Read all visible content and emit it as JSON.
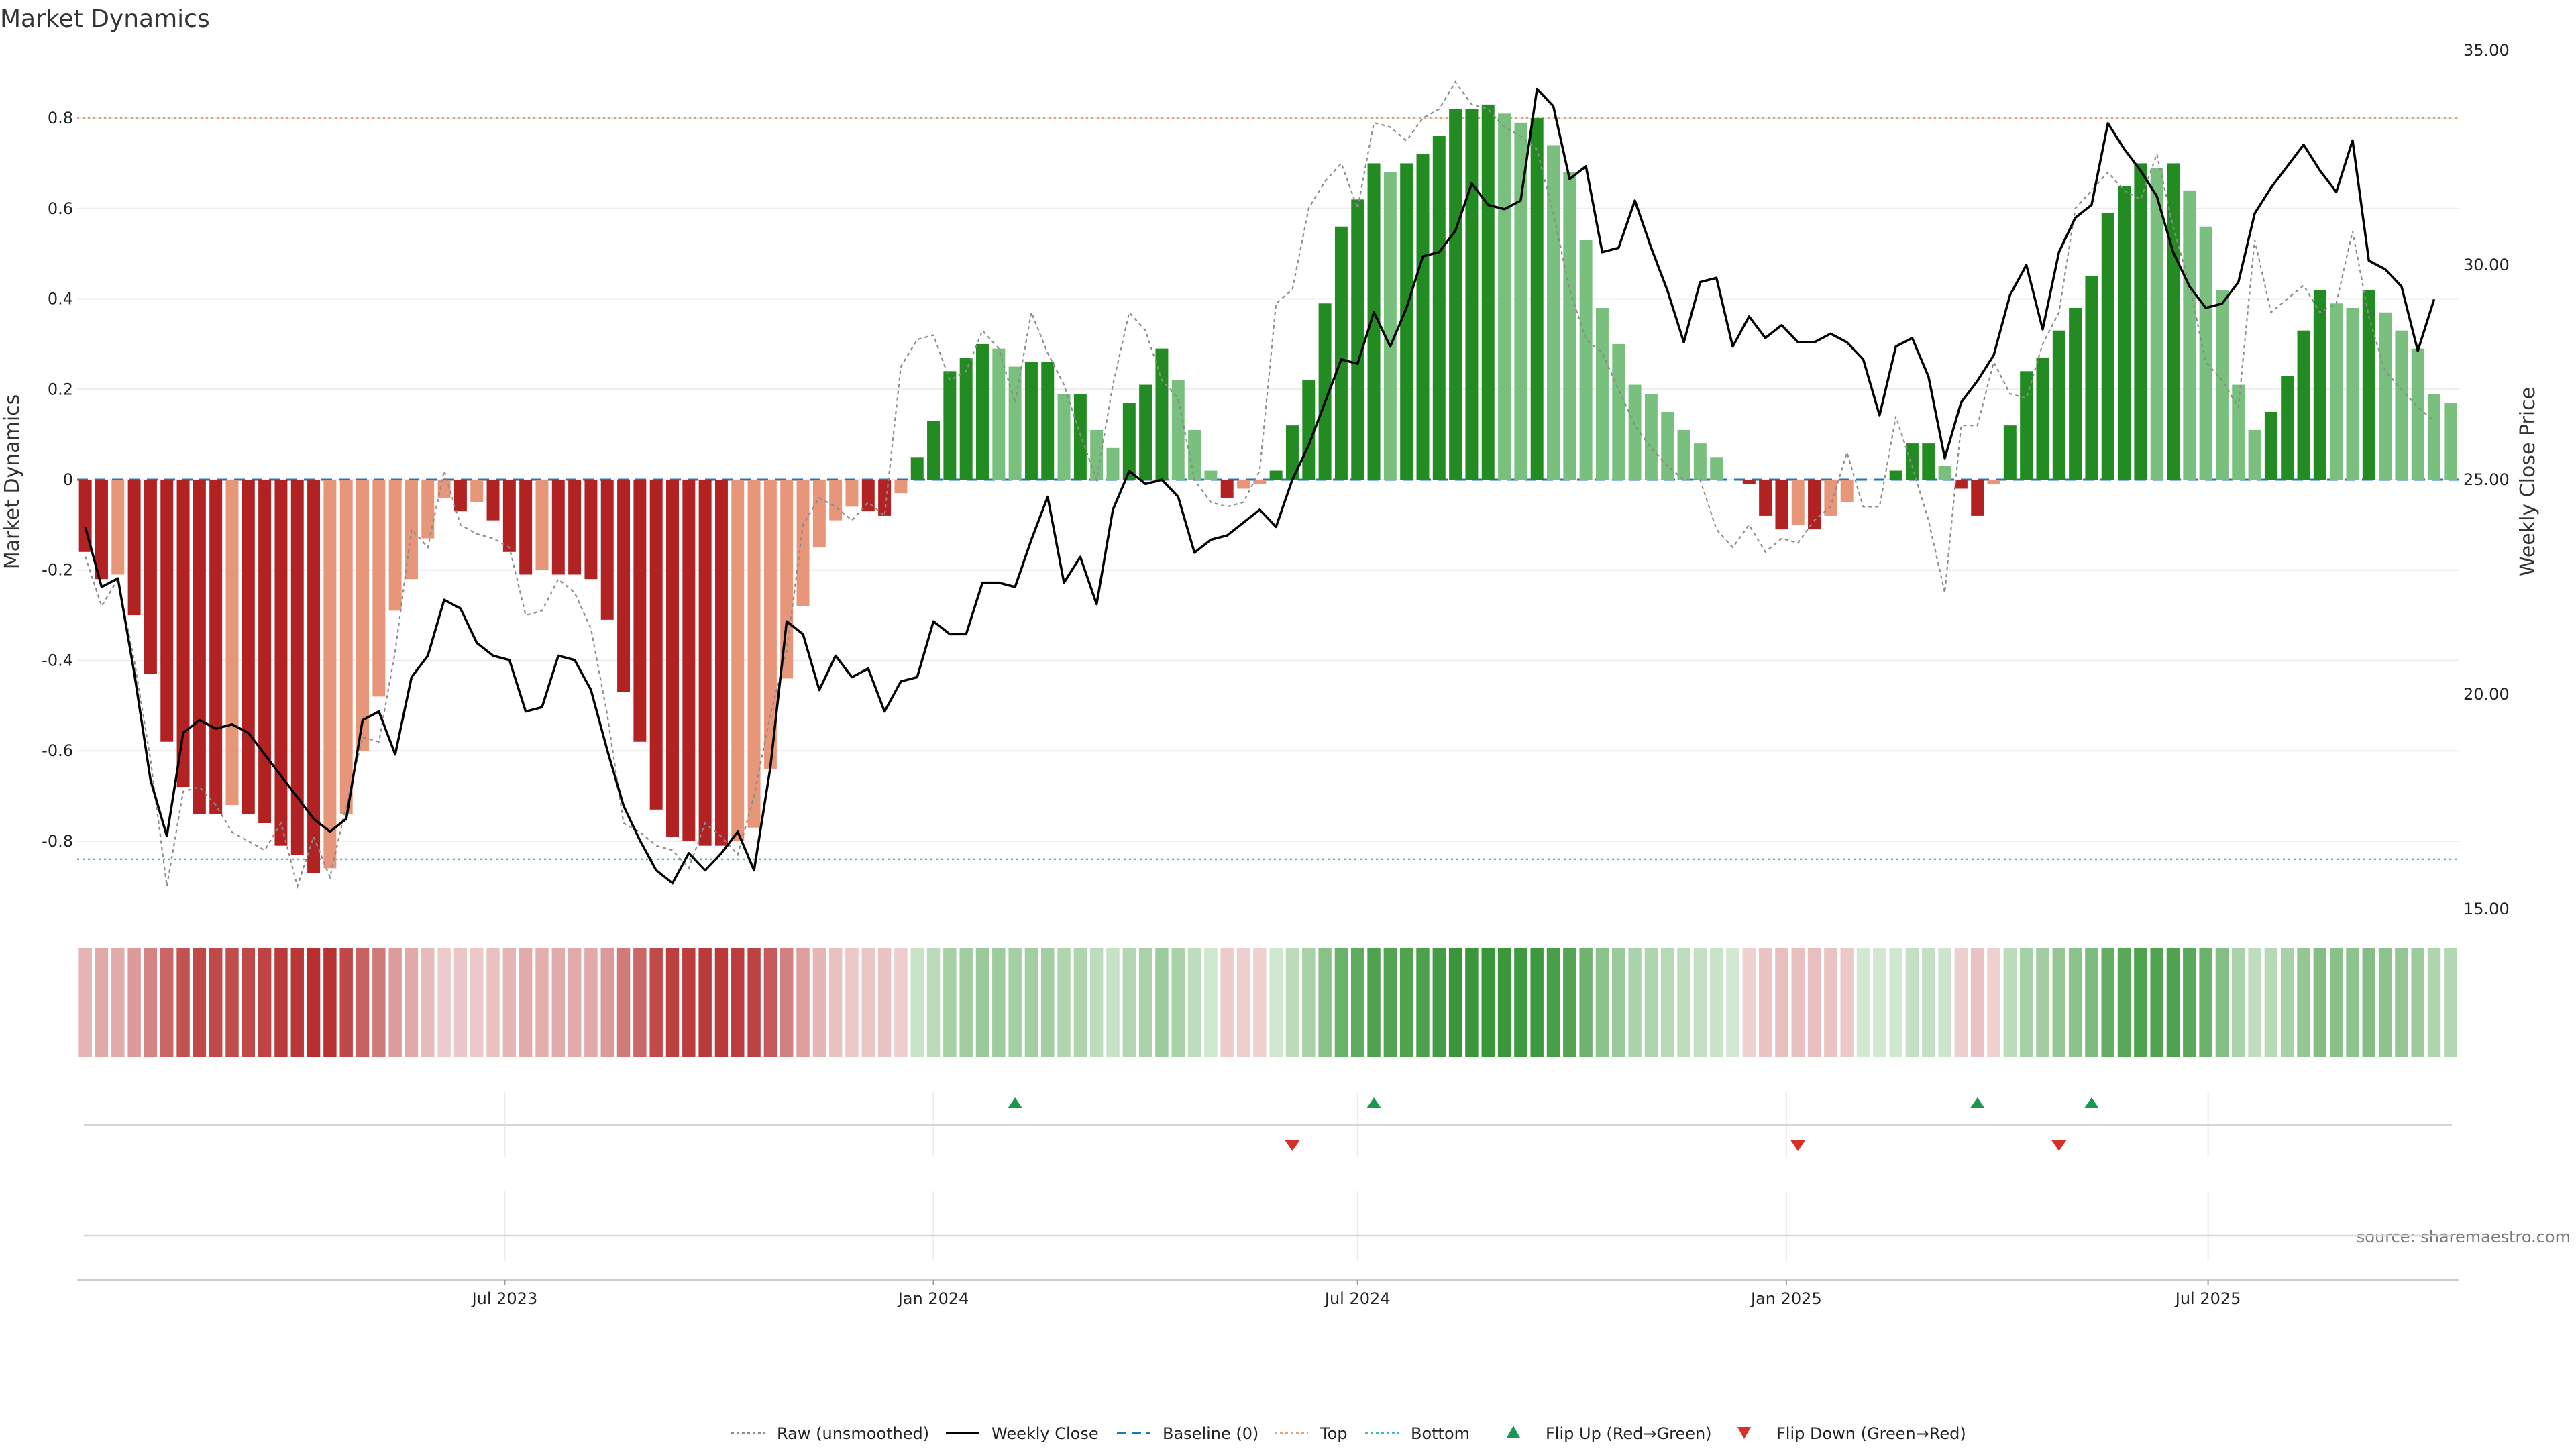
{
  "chart_data": {
    "type": "bar",
    "title": "Market Dynamics",
    "ylabel_left": "Market Dynamics",
    "ylabel_right": "Weekly Close Price",
    "source": "source: sharemaestro.com",
    "left_ylim": [
      -0.95,
      0.95
    ],
    "right_ylim": [
      15,
      35
    ],
    "left_ticks": [
      -0.8,
      -0.6,
      -0.4,
      -0.2,
      0,
      0.2,
      0.4,
      0.6,
      0.8
    ],
    "left_tick_labels": [
      "-0.8",
      "-0.6",
      "-0.4",
      "-0.2",
      "0",
      "0.2",
      "0.4",
      "0.6",
      "0.8"
    ],
    "right_ticks": [
      15,
      20,
      25,
      30,
      35
    ],
    "right_tick_labels": [
      "15.00",
      "20.00",
      "25.00",
      "30.00",
      "35.00"
    ],
    "top_level": 0.8,
    "bottom_level": -0.84,
    "baseline": 0,
    "start_date": "2023-01-02",
    "x_ticks": [
      "2023-07-01",
      "2024-01-01",
      "2024-07-01",
      "2025-01-01",
      "2025-07-01"
    ],
    "x_tick_labels": [
      "Jul 2023",
      "Jan 2024",
      "Jul 2024",
      "Jan 2025",
      "Jul 2025"
    ],
    "values": [
      -0.16,
      -0.22,
      -0.21,
      -0.3,
      -0.43,
      -0.58,
      -0.68,
      -0.74,
      -0.74,
      -0.72,
      -0.74,
      -0.76,
      -0.81,
      -0.83,
      -0.87,
      -0.86,
      -0.74,
      -0.6,
      -0.48,
      -0.29,
      -0.22,
      -0.13,
      -0.04,
      -0.07,
      -0.05,
      -0.09,
      -0.16,
      -0.21,
      -0.2,
      -0.21,
      -0.21,
      -0.22,
      -0.31,
      -0.47,
      -0.58,
      -0.73,
      -0.79,
      -0.8,
      -0.81,
      -0.81,
      -0.8,
      -0.77,
      -0.64,
      -0.44,
      -0.28,
      -0.15,
      -0.09,
      -0.06,
      -0.07,
      -0.08,
      -0.03,
      0.05,
      0.13,
      0.24,
      0.27,
      0.3,
      0.29,
      0.25,
      0.26,
      0.26,
      0.19,
      0.19,
      0.11,
      0.07,
      0.17,
      0.21,
      0.29,
      0.22,
      0.11,
      0.02,
      -0.04,
      -0.02,
      -0.01,
      0.02,
      0.12,
      0.22,
      0.39,
      0.56,
      0.62,
      0.7,
      0.68,
      0.7,
      0.72,
      0.76,
      0.82,
      0.82,
      0.83,
      0.81,
      0.79,
      0.8,
      0.74,
      0.68,
      0.53,
      0.38,
      0.3,
      0.21,
      0.19,
      0.15,
      0.11,
      0.08,
      0.05,
      0.0,
      -0.01,
      -0.08,
      -0.11,
      -0.1,
      -0.11,
      -0.08,
      -0.05,
      0.0,
      0.0,
      0.02,
      0.08,
      0.08,
      0.03,
      -0.02,
      -0.08,
      -0.01,
      0.12,
      0.24,
      0.27,
      0.33,
      0.38,
      0.45,
      0.59,
      0.65,
      0.7,
      0.69,
      0.7,
      0.64,
      0.56,
      0.42,
      0.21,
      0.11,
      0.15,
      0.23,
      0.33,
      0.42,
      0.39,
      0.38,
      0.42,
      0.37,
      0.33,
      0.29,
      0.19,
      0.17
    ],
    "raw_values": [
      -0.17,
      -0.28,
      -0.22,
      -0.4,
      -0.62,
      -0.9,
      -0.69,
      -0.68,
      -0.72,
      -0.78,
      -0.8,
      -0.82,
      -0.76,
      -0.9,
      -0.79,
      -0.88,
      -0.72,
      -0.57,
      -0.58,
      -0.38,
      -0.11,
      -0.15,
      0.02,
      -0.1,
      -0.12,
      -0.13,
      -0.15,
      -0.3,
      -0.29,
      -0.22,
      -0.25,
      -0.33,
      -0.52,
      -0.76,
      -0.78,
      -0.81,
      -0.82,
      -0.86,
      -0.76,
      -0.79,
      -0.83,
      -0.7,
      -0.52,
      -0.38,
      -0.1,
      -0.04,
      -0.06,
      -0.09,
      -0.05,
      -0.08,
      0.25,
      0.31,
      0.32,
      0.22,
      0.24,
      0.33,
      0.29,
      0.17,
      0.37,
      0.28,
      0.21,
      0.1,
      0.0,
      0.21,
      0.37,
      0.33,
      0.22,
      0.18,
      0.0,
      -0.05,
      -0.06,
      -0.05,
      0.02,
      0.39,
      0.42,
      0.6,
      0.66,
      0.7,
      0.6,
      0.79,
      0.78,
      0.75,
      0.8,
      0.82,
      0.88,
      0.83,
      0.82,
      0.78,
      0.76,
      0.73,
      0.59,
      0.42,
      0.31,
      0.28,
      0.2,
      0.12,
      0.07,
      0.03,
      0.0,
      0.0,
      -0.11,
      -0.15,
      -0.1,
      -0.16,
      -0.13,
      -0.14,
      -0.09,
      -0.06,
      0.06,
      -0.06,
      -0.06,
      0.14,
      0.03,
      -0.09,
      -0.25,
      0.12,
      0.12,
      0.26,
      0.19,
      0.18,
      0.3,
      0.37,
      0.6,
      0.64,
      0.68,
      0.64,
      0.62,
      0.72,
      0.56,
      0.43,
      0.26,
      0.22,
      0.16,
      0.53,
      0.37,
      0.4,
      0.43,
      0.37,
      0.39,
      0.55,
      0.36,
      0.24,
      0.2,
      0.16,
      0.13
    ],
    "price": [
      23.9,
      22.5,
      22.7,
      20.5,
      18.0,
      16.7,
      19.1,
      19.4,
      19.2,
      19.3,
      19.1,
      18.6,
      18.1,
      17.6,
      17.1,
      16.8,
      17.1,
      19.4,
      19.6,
      18.6,
      20.4,
      20.9,
      22.2,
      22.0,
      21.2,
      20.9,
      20.8,
      19.6,
      19.7,
      20.9,
      20.8,
      20.1,
      18.7,
      17.4,
      16.6,
      15.9,
      15.6,
      16.3,
      15.9,
      16.3,
      16.8,
      15.9,
      18.3,
      21.7,
      21.4,
      20.1,
      20.9,
      20.4,
      20.6,
      19.6,
      20.3,
      20.4,
      21.7,
      21.4,
      21.4,
      22.6,
      22.6,
      22.5,
      23.6,
      24.6,
      22.6,
      23.2,
      22.1,
      24.3,
      25.2,
      24.9,
      25.0,
      24.6,
      23.3,
      23.6,
      23.7,
      24.0,
      24.3,
      23.9,
      25.0,
      25.8,
      26.8,
      27.8,
      27.7,
      28.9,
      28.1,
      29.0,
      30.2,
      30.3,
      30.8,
      31.9,
      31.4,
      31.3,
      31.5,
      34.1,
      33.7,
      32.0,
      32.3,
      30.3,
      30.4,
      31.5,
      30.4,
      29.4,
      28.2,
      29.6,
      29.7,
      28.1,
      28.8,
      28.3,
      28.6,
      28.2,
      28.2,
      28.4,
      28.2,
      27.8,
      26.5,
      28.1,
      28.3,
      27.4,
      25.5,
      26.8,
      27.3,
      27.9,
      29.3,
      30.0,
      28.5,
      30.3,
      31.1,
      31.4,
      33.3,
      32.7,
      32.2,
      31.6,
      30.3,
      29.5,
      29.0,
      29.1,
      29.6,
      31.2,
      31.8,
      32.3,
      32.8,
      32.2,
      31.7,
      32.9,
      30.1,
      29.9,
      29.5,
      28.0,
      29.2
    ],
    "flips": [
      {
        "date": "2024-02-05",
        "direction": "up"
      },
      {
        "date": "2024-06-03",
        "direction": "down"
      },
      {
        "date": "2024-07-08",
        "direction": "up"
      },
      {
        "date": "2025-01-06",
        "direction": "down"
      },
      {
        "date": "2025-03-24",
        "direction": "up"
      },
      {
        "date": "2025-04-28",
        "direction": "down"
      },
      {
        "date": "2025-05-12",
        "direction": "up"
      }
    ],
    "colors": {
      "strong_up": "#228b22",
      "weak_up": "#79c07f",
      "strong_down": "#b22222",
      "weak_down": "#e8967a",
      "price": "#000000",
      "raw": "#8c8c8c",
      "baseline": "#1f77b4",
      "top": "#e8a070",
      "bottom": "#3fbfbf",
      "flip_up": "#1a9850",
      "flip_down": "#d73027"
    },
    "legend": [
      {
        "key": "raw",
        "label": "Raw (unsmoothed)",
        "style": "dotted"
      },
      {
        "key": "price",
        "label": "Weekly Close",
        "style": "line"
      },
      {
        "key": "baseline",
        "label": "Baseline (0)",
        "style": "dashed"
      },
      {
        "key": "top",
        "label": "Top",
        "style": "dotted"
      },
      {
        "key": "bottom",
        "label": "Bottom",
        "style": "dotted"
      },
      {
        "key": "flip_up",
        "label": "Flip Up (Red→Green)",
        "style": "triangle-up"
      },
      {
        "key": "flip_down",
        "label": "Flip Down (Green→Red)",
        "style": "triangle-down"
      }
    ],
    "legend_placement": "bottom-center",
    "grid": true
  }
}
